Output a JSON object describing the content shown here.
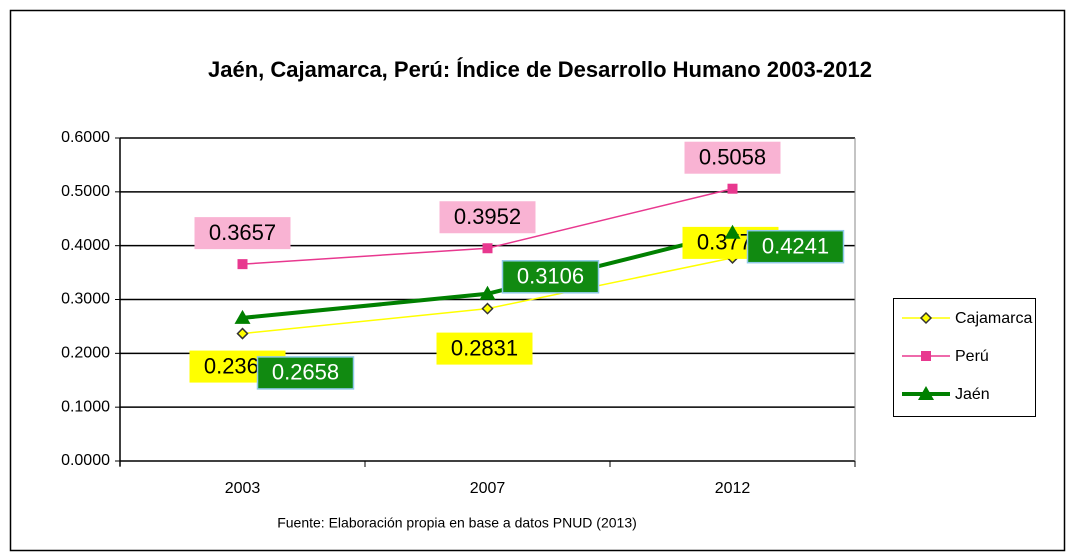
{
  "chart_data": {
    "type": "line",
    "title": "Jaén, Cajamarca, Perú: Índice de Desarrollo Humano 2003-2012",
    "source": "Fuente: Elaboración propia en base a datos PNUD (2013)",
    "categories": [
      "2003",
      "2007",
      "2012"
    ],
    "series": [
      {
        "name": "Cajamarca",
        "color": "#ffff00",
        "values": [
          0.2367,
          0.2831,
          0.3773
        ]
      },
      {
        "name": "Perú",
        "color": "#e8388f",
        "values": [
          0.3657,
          0.3952,
          0.5058
        ]
      },
      {
        "name": "Jaén",
        "color": "#008000",
        "values": [
          0.2658,
          0.3106,
          0.4241
        ]
      }
    ],
    "ylim": [
      0,
      0.6
    ],
    "yticks": [
      {
        "value": 0,
        "label": "0.0000"
      },
      {
        "value": 0.1,
        "label": "0.1000"
      },
      {
        "value": 0.2,
        "label": "0.2000"
      },
      {
        "value": 0.3,
        "label": "0.3000"
      },
      {
        "value": 0.4,
        "label": "0.4000"
      },
      {
        "value": 0.5,
        "label": "0.5000"
      },
      {
        "value": 0.6,
        "label": "0.6000"
      }
    ],
    "grid": true,
    "legend": "right"
  }
}
